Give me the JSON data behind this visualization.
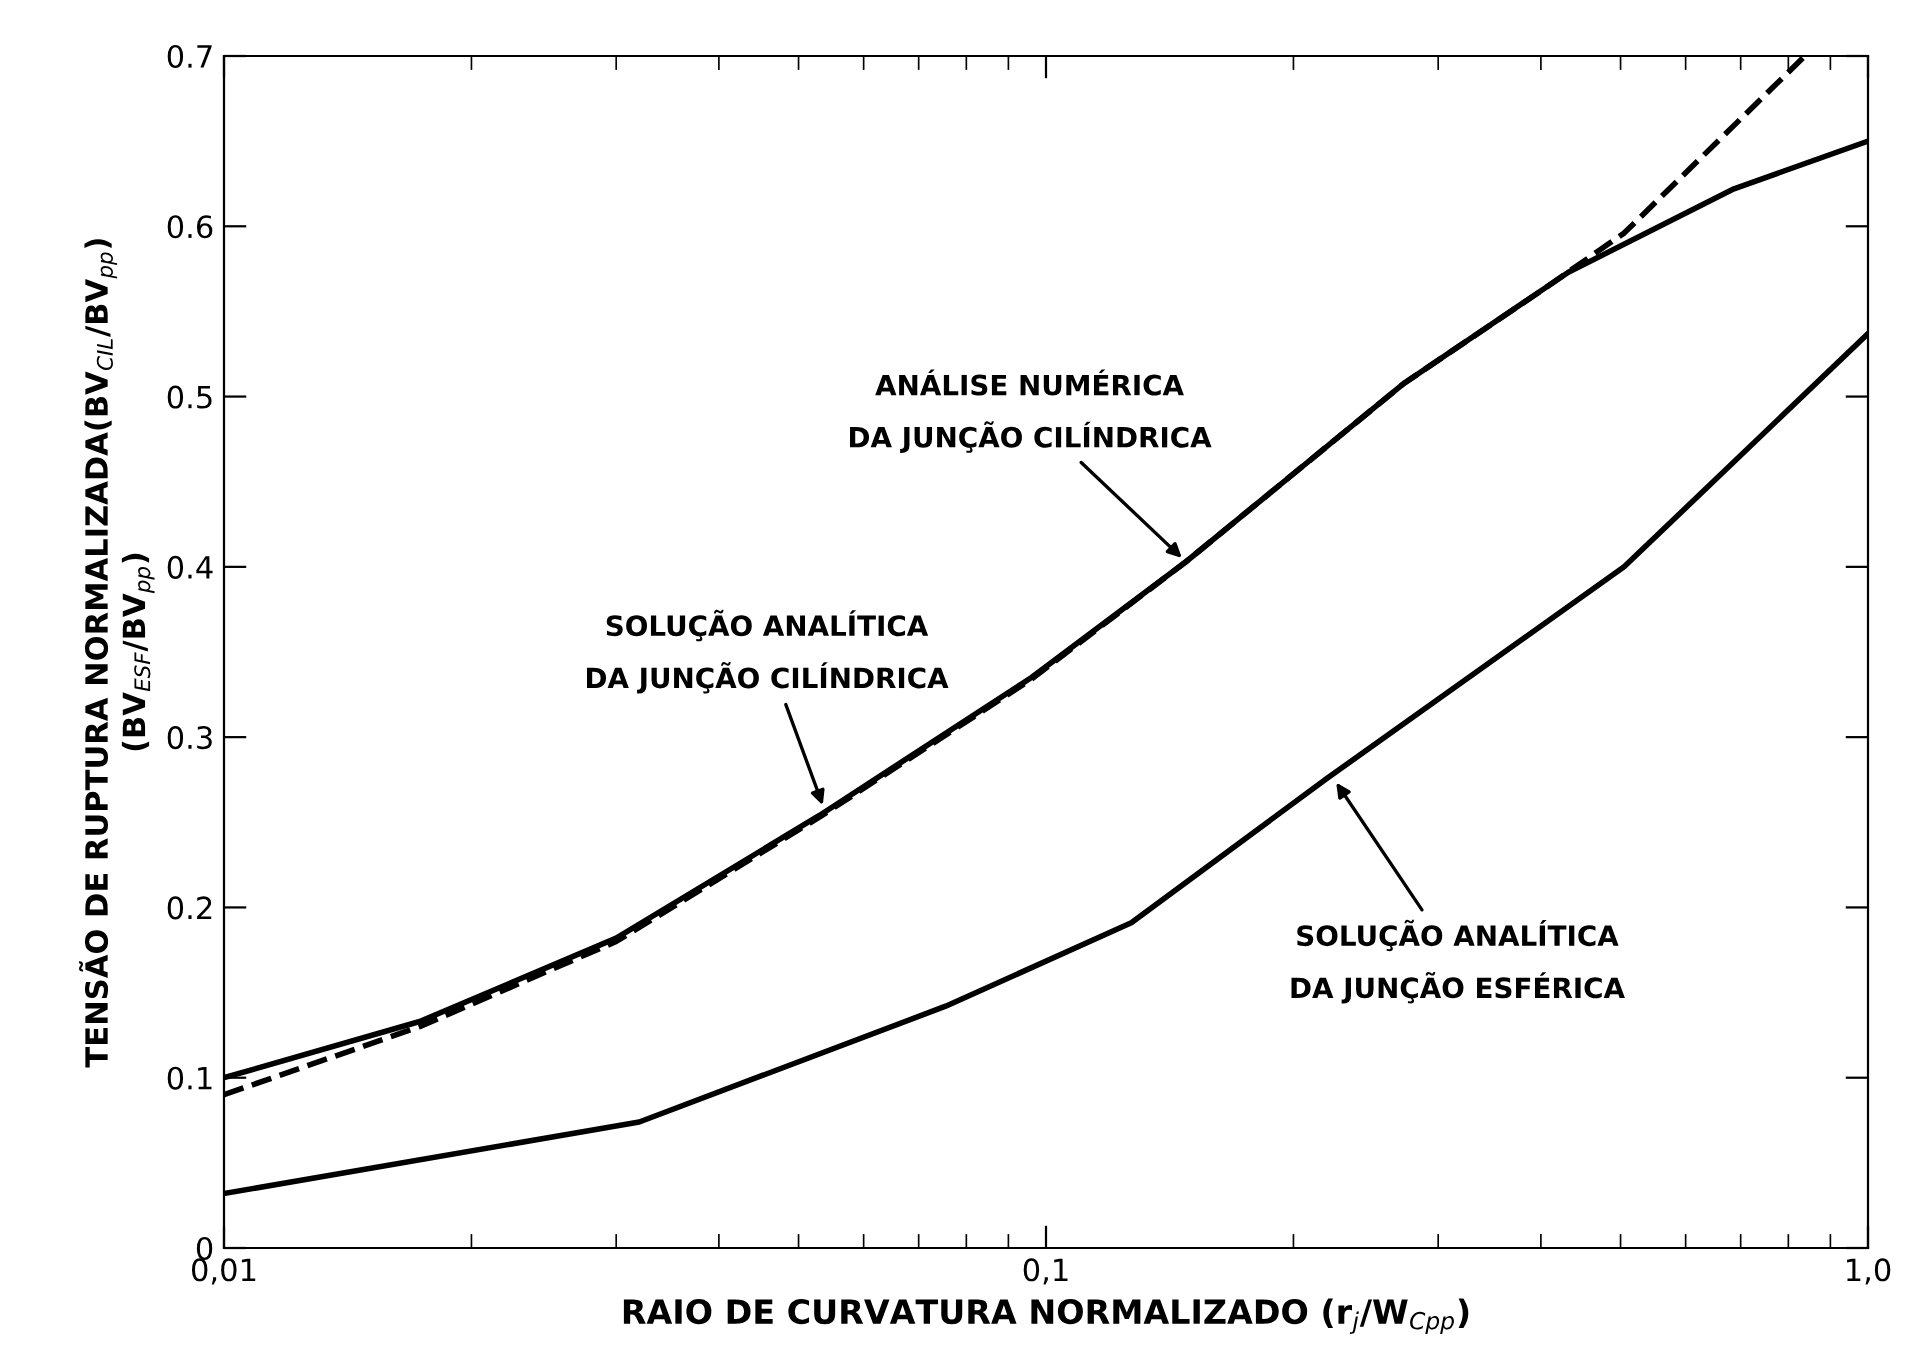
{
  "chart_data": {
    "type": "line",
    "xlabel": "RAIO DE CURVATURA NORMALIZADO (r$_{j}$/W$_{Cpp}$)",
    "ylabel": "TENSÃO DE RUPTURA NORMALIZADA(BV$_{CIL}$/BV$_{pp}$)\n(BV$_{ESF}$/BV$_{pp}$)",
    "log": "x",
    "xlim": [
      0.01,
      1.0
    ],
    "ylim": [
      0,
      0.7
    ],
    "xticks": [
      {
        "value": 0.01,
        "label": "0,01"
      },
      {
        "value": 0.1,
        "label": "0,1"
      },
      {
        "value": 1.0,
        "label": "1,0"
      }
    ],
    "yticks": [
      0,
      0.1,
      0.2,
      0.3,
      0.4,
      0.5,
      0.6,
      0.7
    ],
    "grid": false,
    "series": [
      {
        "color": "#000000",
        "line_style": "solid",
        "x": [
          0.01,
          0.0173,
          0.03,
          0.053,
          0.096,
          0.148,
          0.273,
          0.432,
          0.687,
          1.0
        ],
        "values": [
          0.1,
          0.133,
          0.182,
          0.254,
          0.335,
          0.403,
          0.508,
          0.573,
          0.622,
          0.65
        ]
      },
      {
        "color": "#000000",
        "line_style": "dashed",
        "x": [
          0.01,
          0.0173,
          0.03,
          0.053,
          0.096,
          0.148,
          0.273,
          0.4,
          0.505,
          0.838
        ],
        "values": [
          0.09,
          0.13,
          0.18,
          0.253,
          0.334,
          0.403,
          0.508,
          0.562,
          0.596,
          0.7
        ]
      },
      {
        "color": "#000000",
        "line_style": "solid",
        "x": [
          0.01,
          0.032,
          0.0755,
          0.127,
          0.22,
          0.505,
          1.0
        ],
        "values": [
          0.032,
          0.074,
          0.142,
          0.191,
          0.276,
          0.4,
          0.537
        ]
      }
    ],
    "annotations": [
      {
        "text": "ANÁLISE NUMÉRICA\nDA JUNÇÃO CILÍNDRICA",
        "x": 0.148,
        "y": 0.403
      },
      {
        "text": "SOLUÇÃO ANALÍTICA\nDA JUNÇÃO CILÍNDRICA",
        "x": 0.0538,
        "y": 0.257
      },
      {
        "text": "SOLUÇÃO ANALÍTICA\nDA JUNÇÃO ESFÉRICA",
        "x": 0.2235,
        "y": 0.276
      }
    ]
  }
}
